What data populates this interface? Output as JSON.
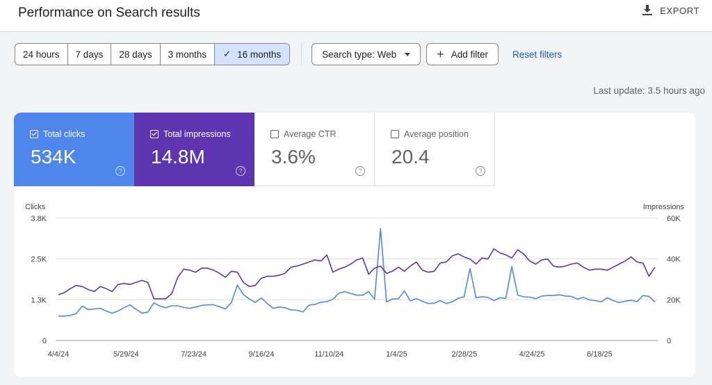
{
  "page": {
    "title": "Performance on Search results",
    "export_label": "EXPORT"
  },
  "date_range": {
    "options": [
      "24 hours",
      "7 days",
      "28 days",
      "3 months",
      "16 months"
    ],
    "selected": "16 months"
  },
  "filters": {
    "search_type": "Search type: Web",
    "add_filter": "Add filter",
    "reset": "Reset filters"
  },
  "last_update": "Last update: 3.5 hours ago",
  "metrics": [
    {
      "label": "Total clicks",
      "value": "534K",
      "checked": true,
      "color": "#4e86ec"
    },
    {
      "label": "Total impressions",
      "value": "14.8M",
      "checked": true,
      "color": "#5e35b1"
    },
    {
      "label": "Average CTR",
      "value": "3.6%",
      "checked": false
    },
    {
      "label": "Average position",
      "value": "20.4",
      "checked": false
    }
  ],
  "chart_data": {
    "type": "line",
    "x_ticks": [
      "4/4/24",
      "5/29/24",
      "7/23/24",
      "9/16/24",
      "11/10/24",
      "1/4/25",
      "2/28/25",
      "4/24/25",
      "6/18/25"
    ],
    "y_left": {
      "label": "Clicks",
      "ticks": [
        "0",
        "1.3K",
        "2.5K",
        "3.8K"
      ],
      "range": [
        0,
        3800
      ]
    },
    "y_right": {
      "label": "Impressions",
      "ticks": [
        "0",
        "20K",
        "40K",
        "60K"
      ],
      "range": [
        0,
        60000
      ]
    },
    "grid": true,
    "series": [
      {
        "name": "Clicks",
        "axis": "left",
        "color": "#4e86ec",
        "values": [
          760,
          760,
          780,
          840,
          1070,
          960,
          980,
          1000,
          920,
          850,
          920,
          1020,
          1110,
          970,
          850,
          880,
          1170,
          1070,
          1020,
          1080,
          1080,
          1030,
          1000,
          1040,
          1090,
          1110,
          1110,
          1050,
          980,
          1180,
          1720,
          1430,
          1290,
          1180,
          1320,
          1150,
          1000,
          1040,
          1020,
          950,
          940,
          890,
          1100,
          1120,
          1190,
          1210,
          1280,
          1470,
          1520,
          1460,
          1410,
          1410,
          1520,
          1280,
          3480,
          1200,
          1290,
          1300,
          1540,
          1230,
          1300,
          1220,
          1150,
          1160,
          1240,
          1150,
          1200,
          1310,
          1360,
          2240,
          1330,
          1360,
          1340,
          1240,
          1330,
          1310,
          2300,
          1410,
          1360,
          1350,
          1300,
          1380,
          1400,
          1400,
          1420,
          1380,
          1370,
          1290,
          1340,
          1260,
          1240,
          1200,
          1330,
          1240,
          1180,
          1220,
          1250,
          1210,
          1400,
          1370,
          1200
        ]
      },
      {
        "name": "Impressions",
        "axis": "right",
        "color": "#5e35b1",
        "values": [
          22500,
          23500,
          25500,
          27000,
          26500,
          25000,
          24000,
          26500,
          25500,
          24000,
          27500,
          28000,
          27500,
          28500,
          29500,
          28500,
          20500,
          20500,
          20500,
          23000,
          31000,
          35000,
          34500,
          33500,
          35500,
          35500,
          34500,
          33000,
          31000,
          34000,
          33500,
          28500,
          26500,
          27000,
          30500,
          31500,
          31500,
          32000,
          33000,
          36000,
          36500,
          37500,
          38500,
          39500,
          39000,
          42000,
          33500,
          35000,
          36000,
          37500,
          39500,
          40500,
          32500,
          35500,
          36500,
          33000,
          34000,
          36000,
          34000,
          36500,
          38500,
          34500,
          33500,
          34000,
          38000,
          38500,
          41500,
          42500,
          41000,
          40000,
          37500,
          40500,
          40000,
          45000,
          43000,
          42000,
          40500,
          44500,
          42500,
          39000,
          37500,
          39500,
          40000,
          36500,
          36000,
          36500,
          37500,
          38000,
          36000,
          34500,
          35000,
          35000,
          34500,
          36000,
          37500,
          39000,
          41000,
          38500,
          38000,
          31500,
          36000
        ]
      }
    ]
  }
}
